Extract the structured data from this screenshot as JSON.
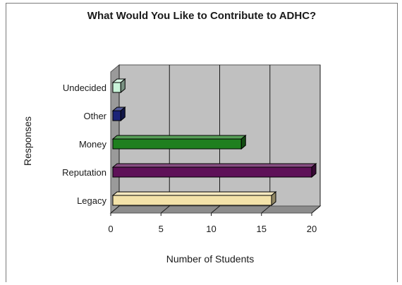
{
  "chart_data": {
    "type": "bar",
    "orientation": "horizontal",
    "style": "3d",
    "title": "What Would You Like to Contribute to ADHC?",
    "xlabel": "Number of Students",
    "ylabel": "Responses",
    "xlim": [
      0,
      20
    ],
    "xticks": [
      "0",
      "5",
      "10",
      "15",
      "20"
    ],
    "grid": true,
    "legend": false,
    "categories": [
      "Legacy",
      "Reputation",
      "Money",
      "Other",
      "Undecided"
    ],
    "values": [
      16,
      20,
      13,
      1,
      1
    ],
    "colors": [
      "#f3e2a9",
      "#5e1158",
      "#1f7f1f",
      "#1c2478",
      "#c9f3d9"
    ]
  }
}
